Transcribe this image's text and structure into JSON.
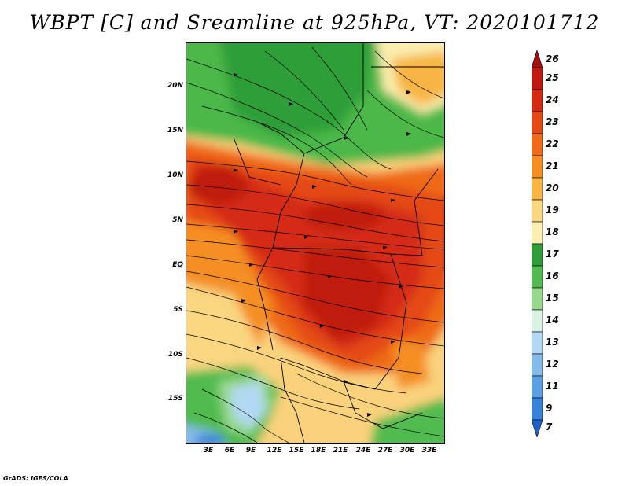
{
  "title": "WBPT [C] and Sreamline at 925hPa, VT: 2020101712",
  "credit": "GrADS: IGES/COLA",
  "map": {
    "variable": "Wet-bulb potential temperature",
    "level": "925hPa",
    "lat_labels": [
      "20N",
      "15N",
      "10N",
      "5N",
      "EQ",
      "5S",
      "10S",
      "15S"
    ],
    "lon_labels": [
      "3E",
      "6E",
      "9E",
      "12E",
      "15E",
      "18E",
      "21E",
      "24E",
      "27E",
      "30E",
      "33E"
    ]
  },
  "colorbar": {
    "labels": [
      "26",
      "25",
      "24",
      "23",
      "22",
      "21",
      "20",
      "19",
      "18",
      "17",
      "16",
      "15",
      "14",
      "13",
      "12",
      "11",
      "9",
      "7"
    ],
    "colors": [
      "#a50f0f",
      "#c01a10",
      "#d42a12",
      "#e44a15",
      "#ef6a19",
      "#f58e22",
      "#f8b545",
      "#fad681",
      "#fbeeae",
      "#2f9e38",
      "#51bb4f",
      "#98d88c",
      "#daf2e4",
      "#b2d8f4",
      "#84bbeb",
      "#5aa0e2",
      "#3882d8",
      "#1f60c8"
    ]
  }
}
